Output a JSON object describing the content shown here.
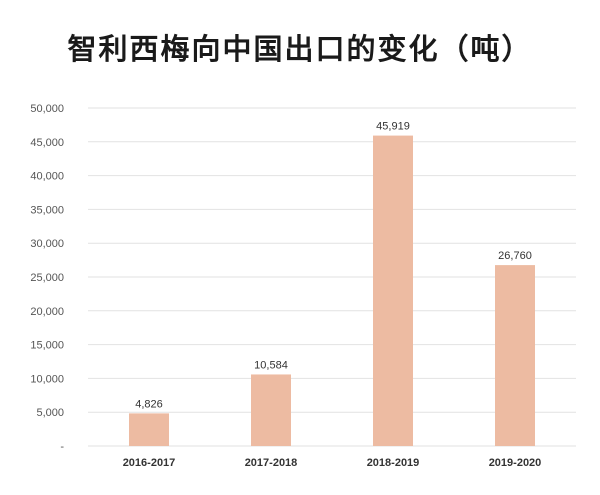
{
  "chart_data": {
    "type": "bar",
    "title": "智利西梅向中国出口的变化（吨）",
    "categories": [
      "2016-2017",
      "2017-2018",
      "2018-2019",
      "2019-2020"
    ],
    "values": [
      4826,
      10584,
      45919,
      26760
    ],
    "data_labels": [
      "4,826",
      "10,584",
      "45,919",
      "26,760"
    ],
    "ylim": [
      0,
      50000
    ],
    "yticks": [
      0,
      5000,
      10000,
      15000,
      20000,
      25000,
      30000,
      35000,
      40000,
      45000,
      50000
    ],
    "ytick_labels": [
      "-",
      "5,000",
      "10,000",
      "15,000",
      "20,000",
      "25,000",
      "30,000",
      "35,000",
      "40,000",
      "45,000",
      "50,000"
    ],
    "xlabel": "",
    "ylabel": "",
    "grid": true,
    "bar_color": "#EDBBA2"
  }
}
